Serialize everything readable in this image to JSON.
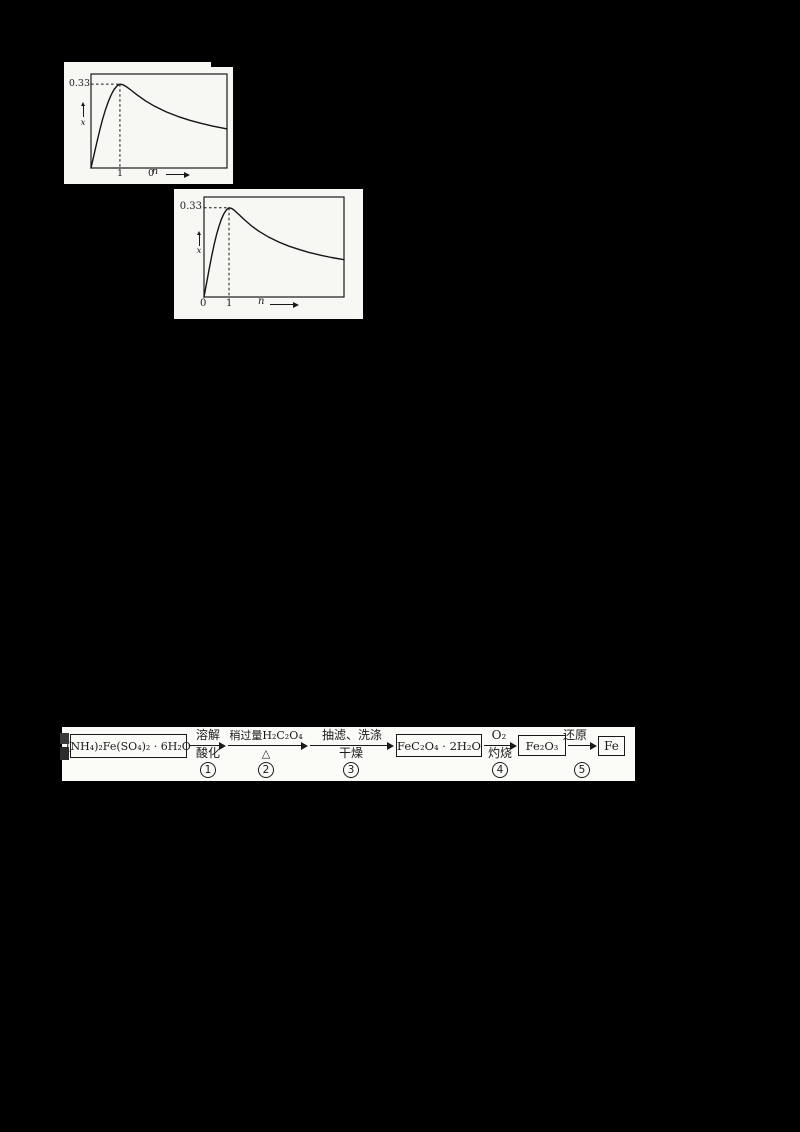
{
  "colors": {
    "background": "#000000",
    "paper": "#f7f7f4",
    "ink": "#1a1a1a"
  },
  "charts": [
    {
      "peak_value_label": "0.33",
      "origin_label": "0",
      "peak_x_tick": "1",
      "x_axis_label": "n",
      "y_axis_label": "x"
    },
    {
      "peak_value_label": "0.33",
      "origin_label": "0",
      "peak_x_tick": "1",
      "x_axis_label": "n",
      "y_axis_label": "x"
    }
  ],
  "chart_data": [
    {
      "type": "line",
      "title": "",
      "xlabel": "n",
      "ylabel": "x",
      "xlim": [
        0,
        4.7
      ],
      "ylim": [
        0,
        0.37
      ],
      "grid": false,
      "peak": {
        "x": 1,
        "y": 0.33
      },
      "peak_label": "0.33",
      "annotations": [
        "dashed guide from y-axis at 0.33 to peak",
        "dashed guide from peak down to x-axis at 1"
      ],
      "x": [
        0,
        0.1,
        0.2,
        0.3,
        0.4,
        0.5,
        0.6,
        0.7,
        0.8,
        0.9,
        1.0,
        1.1,
        1.2,
        1.4,
        1.6,
        1.9,
        2.2,
        2.6,
        3.0,
        3.4,
        3.8,
        4.2,
        4.7
      ],
      "y": [
        0,
        0.05,
        0.1,
        0.148,
        0.192,
        0.23,
        0.262,
        0.289,
        0.309,
        0.323,
        0.33,
        0.328,
        0.322,
        0.305,
        0.287,
        0.263,
        0.243,
        0.221,
        0.203,
        0.188,
        0.176,
        0.165,
        0.154
      ]
    },
    {
      "type": "line",
      "title": "",
      "xlabel": "n",
      "ylabel": "x",
      "xlim": [
        0,
        5.6
      ],
      "ylim": [
        0,
        0.37
      ],
      "grid": false,
      "peak": {
        "x": 1,
        "y": 0.33
      },
      "peak_label": "0.33",
      "annotations": [
        "dashed guide from y-axis at 0.33 to peak",
        "dashed guide from peak down to x-axis at 1"
      ],
      "x": [
        0,
        0.1,
        0.2,
        0.3,
        0.4,
        0.5,
        0.6,
        0.7,
        0.8,
        0.9,
        1.0,
        1.1,
        1.2,
        1.4,
        1.6,
        1.9,
        2.2,
        2.6,
        3.0,
        3.4,
        3.8,
        4.2,
        4.7,
        5.1,
        5.6
      ],
      "y": [
        0,
        0.05,
        0.1,
        0.148,
        0.192,
        0.23,
        0.262,
        0.289,
        0.309,
        0.323,
        0.33,
        0.328,
        0.322,
        0.305,
        0.287,
        0.263,
        0.243,
        0.221,
        0.203,
        0.188,
        0.176,
        0.165,
        0.154,
        0.146,
        0.138
      ]
    }
  ],
  "flow": {
    "nodes": [
      {
        "label": "(NH₄)₂Fe(SO₄)₂ · 6H₂O"
      },
      {
        "label": "FeC₂O₄ · 2H₂O"
      },
      {
        "label": "Fe₂O₃"
      },
      {
        "label": "Fe"
      }
    ],
    "arrows": [
      {
        "top": "溶解",
        "bottom": "酸化",
        "step": "1"
      },
      {
        "top": "稍过量H₂C₂O₄",
        "bottom": "△",
        "step": "2"
      },
      {
        "top": "抽滤、洗涤",
        "bottom": "干燥",
        "step": "3"
      },
      {
        "top": "O₂",
        "bottom": "灼烧",
        "step": "4"
      },
      {
        "top": "还原",
        "bottom": "",
        "step": "5"
      }
    ]
  }
}
